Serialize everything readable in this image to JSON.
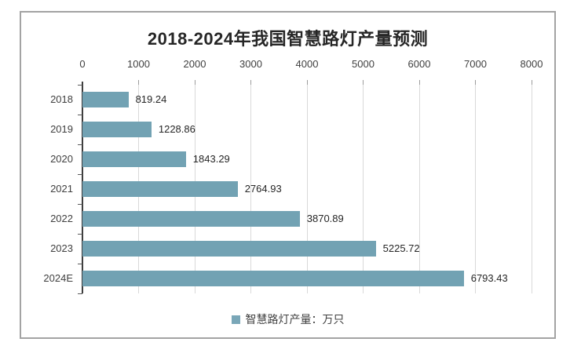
{
  "chart_data": {
    "type": "bar",
    "orientation": "horizontal",
    "title": "2018-2024年我国智慧路灯产量预测",
    "categories": [
      "2018",
      "2019",
      "2020",
      "2021",
      "2022",
      "2023",
      "2024E"
    ],
    "values": [
      819.24,
      1228.86,
      1843.29,
      2764.93,
      3870.89,
      5225.72,
      6793.43
    ],
    "value_labels": [
      "819.24",
      "1228.86",
      "1843.29",
      "2764.93",
      "3870.89",
      "5225.72",
      "6793.43"
    ],
    "legend": "智慧路灯产量：万只",
    "xlabel": "",
    "ylabel": "",
    "xlim": [
      0,
      8000
    ],
    "x_ticks": [
      0,
      1000,
      2000,
      3000,
      4000,
      5000,
      6000,
      7000,
      8000
    ],
    "grid": true,
    "legend_position": "bottom",
    "colors": {
      "bar": "#72a2b3",
      "legend_swatch": "#7aa7b8",
      "gridline": "#d9d9d9",
      "axis": "#3f3f3f",
      "text": "#404040",
      "title": "#262626",
      "card_border": "#a3a3a3"
    }
  }
}
